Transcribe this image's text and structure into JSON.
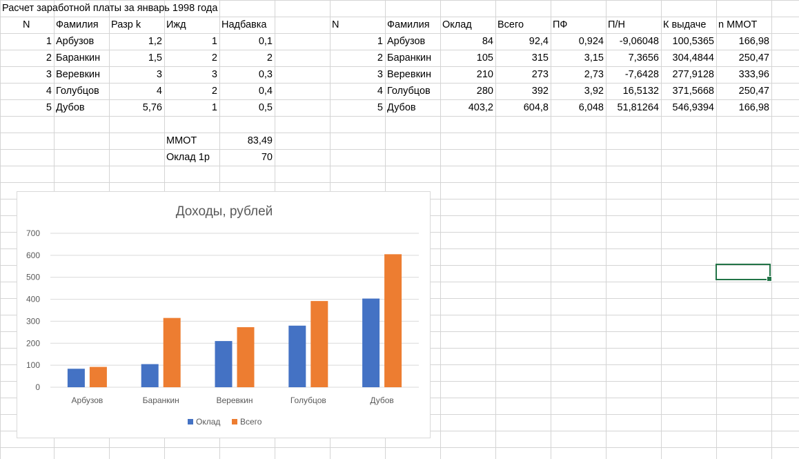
{
  "sheet": {
    "title": "Расчет заработной платы за январь 1998 года",
    "left_table": {
      "headers": [
        "N",
        "Фамилия",
        "Разр k",
        "Ижд",
        "Надбавка"
      ],
      "rows": [
        [
          "1",
          "Арбузов",
          "1,2",
          "1",
          "0,1"
        ],
        [
          "2",
          "Баранкин",
          "1,5",
          "2",
          "2"
        ],
        [
          "3",
          "Веревкин",
          "3",
          "3",
          "0,3"
        ],
        [
          "4",
          "Голубцов",
          "4",
          "2",
          "0,4"
        ],
        [
          "5",
          "Дубов",
          "5,76",
          "1",
          "0,5"
        ]
      ]
    },
    "params": [
      {
        "label": "ММОТ",
        "value": "83,49"
      },
      {
        "label": "Оклад 1р",
        "value": "70"
      }
    ],
    "right_table": {
      "headers": [
        "N",
        "Фамилия",
        "Оклад",
        "Всего",
        "ПФ",
        "П/Н",
        "К выдаче",
        "n ММОТ"
      ],
      "rows": [
        [
          "1",
          "Арбузов",
          "84",
          "92,4",
          "0,924",
          "-9,06048",
          "100,5365",
          "166,98"
        ],
        [
          "2",
          "Баранкин",
          "105",
          "315",
          "3,15",
          "7,3656",
          "304,4844",
          "250,47"
        ],
        [
          "3",
          "Веревкин",
          "210",
          "273",
          "2,73",
          "-7,6428",
          "277,9128",
          "333,96"
        ],
        [
          "4",
          "Голубцов",
          "280",
          "392",
          "3,92",
          "16,5132",
          "371,5668",
          "250,47"
        ],
        [
          "5",
          "Дубов",
          "403,2",
          "604,8",
          "6,048",
          "51,81264",
          "546,9394",
          "166,98"
        ]
      ]
    }
  },
  "chart_data": {
    "type": "bar",
    "title": "Доходы, рублей",
    "categories": [
      "Арбузов",
      "Баранкин",
      "Веревкин",
      "Голубцов",
      "Дубов"
    ],
    "series": [
      {
        "name": "Оклад",
        "values": [
          84,
          105,
          210,
          280,
          403.2
        ],
        "color": "#4472c4"
      },
      {
        "name": "Всего",
        "values": [
          92.4,
          315,
          273,
          392,
          604.8
        ],
        "color": "#ed7d31"
      }
    ],
    "ylim": [
      0,
      700
    ],
    "yticks": [
      0,
      100,
      200,
      300,
      400,
      500,
      600,
      700
    ],
    "grid": true,
    "legend": "bottom"
  },
  "colors": {
    "gridline": "#d4d4d4",
    "selection": "#217346",
    "chart_grid": "#d9d9d9",
    "chart_text": "#595959"
  }
}
